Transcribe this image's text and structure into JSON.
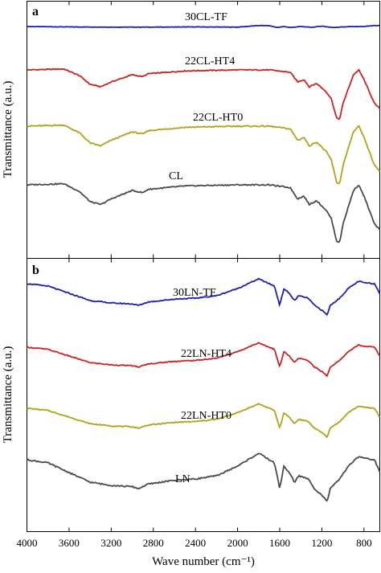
{
  "figure": {
    "ylabel": "Transmittance (a.u.)",
    "xlabel": "Wave number (cm⁻¹)",
    "x_ticks": [
      4000,
      3600,
      3200,
      2800,
      2400,
      2000,
      1600,
      1200,
      800
    ],
    "xlim": [
      4000,
      650
    ]
  },
  "chart_data": [
    {
      "type": "line",
      "panel_label": "a",
      "xlabel": "",
      "ylabel": "Transmittance (a.u.)",
      "xlim": [
        4000,
        650
      ],
      "grid": false,
      "legend": "none",
      "series": [
        {
          "name": "30CL-TF",
          "color": "#1f1fb0",
          "points": [
            [
              4000,
              0
            ],
            [
              3600,
              -0.02
            ],
            [
              3200,
              -0.03
            ],
            [
              2800,
              -0.03
            ],
            [
              2400,
              -0.02
            ],
            [
              2000,
              -0.03
            ],
            [
              1800,
              0.05
            ],
            [
              1700,
              0.04
            ],
            [
              1620,
              -0.05
            ],
            [
              1560,
              0.0
            ],
            [
              1500,
              -0.05
            ],
            [
              1400,
              0.0
            ],
            [
              1300,
              -0.04
            ],
            [
              1200,
              0.02
            ],
            [
              1100,
              -0.05
            ],
            [
              1000,
              -0.02
            ],
            [
              900,
              0.0
            ],
            [
              800,
              0.0
            ],
            [
              700,
              0.05
            ],
            [
              650,
              0.04
            ]
          ]
        },
        {
          "name": "22CL-HT4",
          "color": "#cc2222",
          "points": [
            [
              4000,
              0
            ],
            [
              3800,
              0.01
            ],
            [
              3650,
              0.02
            ],
            [
              3500,
              -0.12
            ],
            [
              3400,
              -0.3
            ],
            [
              3300,
              -0.35
            ],
            [
              3200,
              -0.25
            ],
            [
              3000,
              -0.1
            ],
            [
              2900,
              -0.14
            ],
            [
              2850,
              -0.08
            ],
            [
              2500,
              -0.02
            ],
            [
              2000,
              0.0
            ],
            [
              1700,
              0.0
            ],
            [
              1500,
              -0.05
            ],
            [
              1430,
              -0.25
            ],
            [
              1370,
              -0.2
            ],
            [
              1320,
              -0.35
            ],
            [
              1250,
              -0.28
            ],
            [
              1160,
              -0.45
            ],
            [
              1110,
              -0.6
            ],
            [
              1060,
              -1.0
            ],
            [
              1030,
              -1.02
            ],
            [
              1000,
              -0.7
            ],
            [
              900,
              -0.1
            ],
            [
              850,
              0.0
            ],
            [
              800,
              -0.2
            ],
            [
              700,
              -0.7
            ],
            [
              650,
              -0.8
            ]
          ]
        },
        {
          "name": "22CL-HT0",
          "color": "#b3a119",
          "points": [
            [
              4000,
              0
            ],
            [
              3800,
              0.01
            ],
            [
              3650,
              0.02
            ],
            [
              3500,
              -0.12
            ],
            [
              3400,
              -0.3
            ],
            [
              3300,
              -0.35
            ],
            [
              3200,
              -0.25
            ],
            [
              3000,
              -0.1
            ],
            [
              2900,
              -0.14
            ],
            [
              2850,
              -0.08
            ],
            [
              2500,
              -0.02
            ],
            [
              2000,
              0.0
            ],
            [
              1700,
              0.0
            ],
            [
              1500,
              -0.05
            ],
            [
              1430,
              -0.25
            ],
            [
              1370,
              -0.2
            ],
            [
              1320,
              -0.35
            ],
            [
              1250,
              -0.28
            ],
            [
              1160,
              -0.45
            ],
            [
              1110,
              -0.6
            ],
            [
              1060,
              -1.0
            ],
            [
              1030,
              -1.02
            ],
            [
              1000,
              -0.7
            ],
            [
              900,
              -0.1
            ],
            [
              850,
              0.0
            ],
            [
              800,
              -0.2
            ],
            [
              700,
              -0.7
            ],
            [
              650,
              -0.8
            ]
          ]
        },
        {
          "name": "CL",
          "color": "#4a4a4a",
          "points": [
            [
              4000,
              0
            ],
            [
              3800,
              0.01
            ],
            [
              3650,
              0.02
            ],
            [
              3500,
              -0.12
            ],
            [
              3400,
              -0.3
            ],
            [
              3300,
              -0.35
            ],
            [
              3200,
              -0.25
            ],
            [
              3000,
              -0.1
            ],
            [
              2900,
              -0.14
            ],
            [
              2850,
              -0.08
            ],
            [
              2500,
              -0.02
            ],
            [
              2000,
              0.0
            ],
            [
              1700,
              0.0
            ],
            [
              1500,
              -0.05
            ],
            [
              1430,
              -0.25
            ],
            [
              1370,
              -0.2
            ],
            [
              1320,
              -0.35
            ],
            [
              1250,
              -0.28
            ],
            [
              1160,
              -0.45
            ],
            [
              1110,
              -0.6
            ],
            [
              1060,
              -1.0
            ],
            [
              1030,
              -1.02
            ],
            [
              1000,
              -0.7
            ],
            [
              900,
              -0.1
            ],
            [
              850,
              0.0
            ],
            [
              800,
              -0.2
            ],
            [
              700,
              -0.7
            ],
            [
              650,
              -0.8
            ]
          ]
        }
      ]
    },
    {
      "type": "line",
      "panel_label": "b",
      "xlabel": "Wave number (cm⁻¹)",
      "ylabel": "Transmittance (a.u.)",
      "xlim": [
        4000,
        650
      ],
      "x_ticks": [
        4000,
        3600,
        3200,
        2800,
        2400,
        2000,
        1600,
        1200,
        800
      ],
      "grid": false,
      "legend": "none",
      "series": [
        {
          "name": "30LN-TF",
          "color": "#1f1fb0",
          "points": [
            [
              4000,
              0
            ],
            [
              3800,
              -0.05
            ],
            [
              3600,
              -0.2
            ],
            [
              3400,
              -0.35
            ],
            [
              3200,
              -0.4
            ],
            [
              3000,
              -0.42
            ],
            [
              2940,
              -0.45
            ],
            [
              2850,
              -0.38
            ],
            [
              2600,
              -0.32
            ],
            [
              2400,
              -0.3
            ],
            [
              2200,
              -0.25
            ],
            [
              2000,
              -0.1
            ],
            [
              1800,
              0.1
            ],
            [
              1700,
              0.0
            ],
            [
              1650,
              -0.05
            ],
            [
              1600,
              -0.45
            ],
            [
              1560,
              -0.1
            ],
            [
              1510,
              -0.2
            ],
            [
              1460,
              -0.35
            ],
            [
              1420,
              -0.25
            ],
            [
              1330,
              -0.3
            ],
            [
              1270,
              -0.45
            ],
            [
              1200,
              -0.55
            ],
            [
              1150,
              -0.65
            ],
            [
              1120,
              -0.45
            ],
            [
              1030,
              -0.3
            ],
            [
              950,
              -0.1
            ],
            [
              850,
              0.05
            ],
            [
              800,
              0.02
            ],
            [
              700,
              0.0
            ],
            [
              650,
              -0.2
            ]
          ]
        },
        {
          "name": "22LN-HT4",
          "color": "#cc2222",
          "points": [
            [
              4000,
              0
            ],
            [
              3800,
              -0.05
            ],
            [
              3600,
              -0.2
            ],
            [
              3400,
              -0.35
            ],
            [
              3200,
              -0.4
            ],
            [
              3000,
              -0.42
            ],
            [
              2940,
              -0.45
            ],
            [
              2850,
              -0.38
            ],
            [
              2600,
              -0.32
            ],
            [
              2400,
              -0.3
            ],
            [
              2200,
              -0.25
            ],
            [
              2000,
              -0.1
            ],
            [
              1800,
              0.1
            ],
            [
              1700,
              0.0
            ],
            [
              1650,
              -0.05
            ],
            [
              1600,
              -0.45
            ],
            [
              1560,
              -0.1
            ],
            [
              1510,
              -0.2
            ],
            [
              1460,
              -0.35
            ],
            [
              1420,
              -0.25
            ],
            [
              1330,
              -0.3
            ],
            [
              1270,
              -0.45
            ],
            [
              1200,
              -0.55
            ],
            [
              1150,
              -0.65
            ],
            [
              1120,
              -0.45
            ],
            [
              1030,
              -0.3
            ],
            [
              950,
              -0.1
            ],
            [
              850,
              0.05
            ],
            [
              800,
              0.02
            ],
            [
              700,
              0.0
            ],
            [
              650,
              -0.2
            ]
          ]
        },
        {
          "name": "22LN-HT0",
          "color": "#b3a119",
          "points": [
            [
              4000,
              0
            ],
            [
              3800,
              -0.05
            ],
            [
              3600,
              -0.2
            ],
            [
              3400,
              -0.35
            ],
            [
              3200,
              -0.4
            ],
            [
              3000,
              -0.42
            ],
            [
              2940,
              -0.45
            ],
            [
              2850,
              -0.38
            ],
            [
              2600,
              -0.32
            ],
            [
              2400,
              -0.3
            ],
            [
              2200,
              -0.25
            ],
            [
              2000,
              -0.1
            ],
            [
              1800,
              0.1
            ],
            [
              1700,
              0.0
            ],
            [
              1650,
              -0.05
            ],
            [
              1600,
              -0.45
            ],
            [
              1560,
              -0.1
            ],
            [
              1510,
              -0.2
            ],
            [
              1460,
              -0.35
            ],
            [
              1420,
              -0.25
            ],
            [
              1330,
              -0.3
            ],
            [
              1270,
              -0.45
            ],
            [
              1200,
              -0.55
            ],
            [
              1150,
              -0.65
            ],
            [
              1120,
              -0.45
            ],
            [
              1030,
              -0.3
            ],
            [
              950,
              -0.1
            ],
            [
              850,
              0.05
            ],
            [
              800,
              0.02
            ],
            [
              700,
              0.0
            ],
            [
              650,
              -0.2
            ]
          ]
        },
        {
          "name": "LN",
          "color": "#4a4a4a",
          "points": [
            [
              4000,
              0
            ],
            [
              3800,
              -0.05
            ],
            [
              3600,
              -0.2
            ],
            [
              3400,
              -0.35
            ],
            [
              3200,
              -0.4
            ],
            [
              3000,
              -0.42
            ],
            [
              2940,
              -0.45
            ],
            [
              2850,
              -0.38
            ],
            [
              2600,
              -0.32
            ],
            [
              2400,
              -0.3
            ],
            [
              2200,
              -0.25
            ],
            [
              2000,
              -0.1
            ],
            [
              1800,
              0.1
            ],
            [
              1700,
              0.0
            ],
            [
              1650,
              -0.05
            ],
            [
              1600,
              -0.45
            ],
            [
              1560,
              -0.1
            ],
            [
              1510,
              -0.2
            ],
            [
              1460,
              -0.35
            ],
            [
              1420,
              -0.25
            ],
            [
              1330,
              -0.3
            ],
            [
              1270,
              -0.45
            ],
            [
              1200,
              -0.55
            ],
            [
              1150,
              -0.65
            ],
            [
              1120,
              -0.45
            ],
            [
              1030,
              -0.3
            ],
            [
              950,
              -0.1
            ],
            [
              850,
              0.05
            ],
            [
              800,
              0.02
            ],
            [
              700,
              0.0
            ],
            [
              650,
              -0.2
            ]
          ]
        }
      ]
    }
  ]
}
